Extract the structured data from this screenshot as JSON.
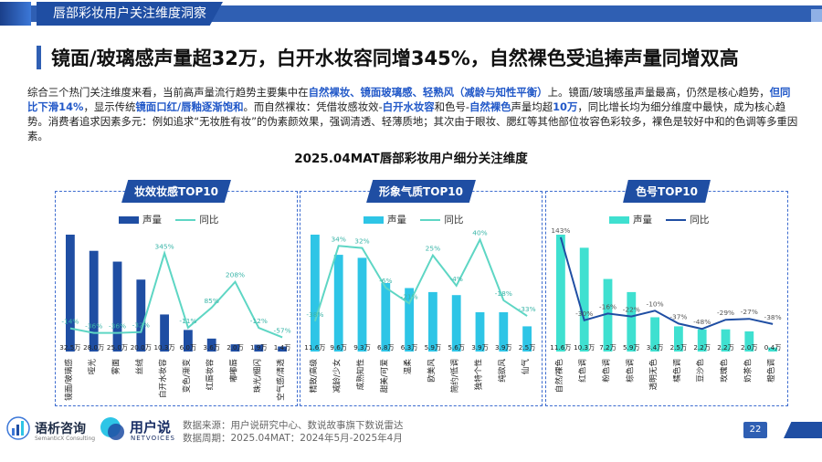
{
  "header": {
    "section_tag": "唇部彩妆用户关注维度洞察",
    "headline": "镜面/玻璃感声量超32万，白开水妆容同增345%，自然裸色受追捧声量同增双高"
  },
  "summary": {
    "p1": "综合三个热门关注维度来看，当前高声量流行趋势主要集中在",
    "h1": "自然裸妆、镜面玻璃感、轻熟风（减龄与知性平衡）",
    "p2": "上。镜面/玻璃感虽声量最高，仍然是核心趋势，",
    "h2": "但同比下滑14%",
    "p3": "，显示传统",
    "h3": "镜面口红/唇釉逐渐饱和",
    "p4": "。而自然裸妆：凭借妆感妆效-",
    "h4": "白开水妆容",
    "p5": "和色号-",
    "h5": "自然裸色",
    "p6": "声量均超",
    "h6": "10万",
    "p7": "，同比增长均为细分维度中最快，成为核心趋势。消费者追求因素多元：例如追求“无妆胜有妆”的伪素颜效果，强调清透、轻薄质地；其次由于眼妆、腮红等其他部位妆容色彩较多，裸色是较好中和的色调等多重因素。"
  },
  "chart_title": "2025.04MAT唇部彩妆用户细分关注维度",
  "legend": {
    "volume": "声量",
    "yoy": "同比"
  },
  "chart_data": [
    {
      "type": "bar",
      "title": "妆效妆感TOP10",
      "categories": [
        "镜面/玻璃感",
        "哑光",
        "雾面",
        "丝绒",
        "白开水妆容",
        "变色/渐变",
        "红唇妆容",
        "嘟嘟唇",
        "珠光/细闪",
        "空气感/清透"
      ],
      "volume_labels": [
        "32.5万",
        "28.0万",
        "25.0万",
        "20.0万",
        "10.3万",
        "6.0万",
        "3.6万",
        "2.0万",
        "1.9万",
        "1.4万"
      ],
      "series": [
        {
          "name": "声量",
          "values": [
            32.5,
            28.0,
            25.0,
            20.0,
            10.3,
            6.0,
            3.6,
            2.0,
            1.9,
            1.4
          ]
        },
        {
          "name": "同比",
          "values": [
            -14,
            -36,
            -36,
            -32,
            345,
            -11,
            85,
            208,
            -12,
            -57
          ]
        }
      ],
      "yoy_labels": [
        "-14%",
        "-36%",
        "-36%",
        "-32%",
        "345%",
        "-11%",
        "85%",
        "208%",
        "-12%",
        "-57%"
      ],
      "colors": {
        "bar": "#1f4ea3",
        "line": "#5ed6c4"
      }
    },
    {
      "type": "bar",
      "title": "形象气质TOP10",
      "categories": [
        "精致/高级",
        "减龄/少女",
        "成熟知性",
        "甜美/可爱",
        "温柔",
        "欧美风",
        "简约/低调",
        "独特个性",
        "纯欲风",
        "仙气"
      ],
      "volume_labels": [
        "11.6万",
        "9.6万",
        "9.3万",
        "6.8万",
        "6.3万",
        "5.9万",
        "5.6万",
        "3.9万",
        "3.9万",
        "2.5万"
      ],
      "series": [
        {
          "name": "声量",
          "values": [
            11.6,
            9.6,
            9.3,
            6.8,
            6.3,
            5.9,
            5.6,
            3.9,
            3.9,
            2.5
          ]
        },
        {
          "name": "同比",
          "values": [
            -38,
            34,
            32,
            -6,
            -21,
            25,
            -4,
            40,
            -18,
            -33
          ]
        }
      ],
      "yoy_labels": [
        "-38%",
        "34%",
        "32%",
        "-6%",
        "-21%",
        "25%",
        "-4%",
        "40%",
        "-18%",
        "-33%"
      ],
      "colors": {
        "bar": "#2ec5e6",
        "line": "#5ed6c4"
      }
    },
    {
      "type": "bar",
      "title": "色号TOP10",
      "categories": [
        "自然/裸色",
        "红色调",
        "粉色调",
        "棕色调",
        "透明无色",
        "橘色调",
        "豆沙色",
        "玫瑰色",
        "奶茶色",
        "橙色调"
      ],
      "volume_labels": [
        "11.6万",
        "10.3万",
        "7.2万",
        "5.9万",
        "3.4万",
        "2.5万",
        "2.2万",
        "2.2万",
        "2.0万",
        "0.4万"
      ],
      "series": [
        {
          "name": "声量",
          "values": [
            11.6,
            10.3,
            7.2,
            5.9,
            3.4,
            2.5,
            2.2,
            2.2,
            2.0,
            0.4
          ]
        },
        {
          "name": "同比",
          "values": [
            143,
            -30,
            -16,
            -22,
            -10,
            -37,
            -48,
            -29,
            -27,
            -38
          ]
        }
      ],
      "yoy_labels": [
        "143%",
        "-30%",
        "-16%",
        "-22%",
        "-10%",
        "-37%",
        "-48%",
        "-29%",
        "-27%",
        "-38%"
      ],
      "colors": {
        "bar": "#3fe0d0",
        "line": "#1f4ea3"
      }
    }
  ],
  "footer": {
    "logo1_name": "语析咨询",
    "logo1_sub": "SemanticX Consulting",
    "logo2_name": "用户说",
    "logo2_sub": "NETVOICES",
    "source": "数据来源：用户说研究中心、数说故事旗下数说雷达",
    "period": "数据周期：2025.04MAT：2024年5月-2025年4月",
    "page": "22"
  }
}
